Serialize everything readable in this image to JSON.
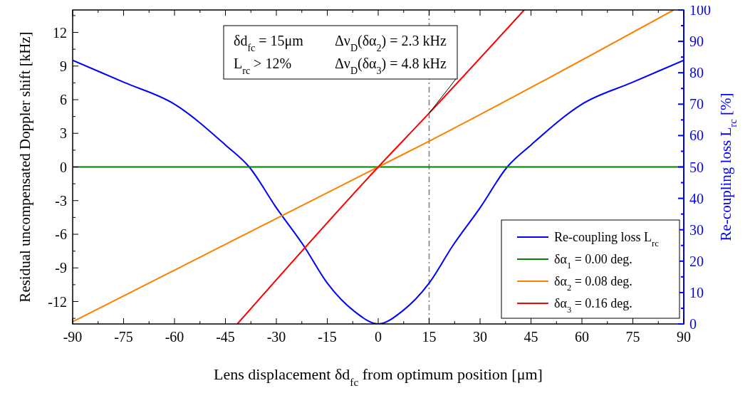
{
  "chart_data": {
    "type": "line",
    "xlabel": "Lens displacement δd$_{fc}$ from optimum position [μm]",
    "ylabel": "Residual uncompensated Doppler shift [kHz]",
    "y2label": "Re-coupling loss L$_{rc}$ [%]",
    "xlim": [
      -90,
      90
    ],
    "xticks": [
      -90,
      -75,
      -60,
      -45,
      -30,
      -15,
      0,
      15,
      30,
      45,
      60,
      75,
      90
    ],
    "ylim": [
      -14,
      14
    ],
    "yticks": [
      -12,
      -9,
      -6,
      -3,
      0,
      3,
      6,
      9,
      12
    ],
    "y2lim": [
      0,
      100
    ],
    "y2ticks": [
      0,
      10,
      20,
      30,
      40,
      50,
      60,
      70,
      80,
      90,
      100
    ],
    "grid": false,
    "legend": "bottom right",
    "marker": "none",
    "line_style": "solid",
    "series": [
      {
        "name": "Re-coupling loss L$_{rc}$",
        "color": "#0000ff",
        "axis": "y2",
        "x": [
          -90,
          -75,
          -60,
          -45,
          -38,
          -30,
          -22,
          -15,
          -7,
          0,
          7,
          15,
          22,
          30,
          38,
          45,
          60,
          75,
          90
        ],
        "values": [
          84,
          77,
          70,
          57,
          50,
          37,
          25,
          13,
          4,
          0,
          4,
          13,
          25,
          37,
          50,
          57,
          70,
          77,
          84
        ]
      },
      {
        "name": "δα$_{1}$ = 0.00 deg.",
        "color": "#008000",
        "x": [
          -90,
          90
        ],
        "values": [
          0,
          0
        ]
      },
      {
        "name": "δα$_{2}$ = 0.08 deg.",
        "color": "#ff8000",
        "x": [
          -90,
          0,
          15,
          87
        ],
        "values": [
          -13.8,
          0,
          2.3,
          14
        ]
      },
      {
        "name": "δα$_{3}$ = 0.16 deg.",
        "color": "#ff0000",
        "x": [
          -41.5,
          0,
          15,
          43
        ],
        "values": [
          -14,
          0,
          4.8,
          14
        ]
      }
    ],
    "ref_lines": [
      {
        "axis": "x",
        "value": 15,
        "color": "#808080",
        "line_style": "dashdot"
      }
    ],
    "annotations": [
      "δd$_{fc}$ = 15μm",
      "Δν$_{D}$(δα$_{2}$) = 2.3 kHz",
      "L$_{rc}$ > 12%",
      {
        "text": "Δν$_{D}$(δα$_{3}$) = 4.8 kHz",
        "x": 15,
        "y": 4.8
      }
    ]
  }
}
